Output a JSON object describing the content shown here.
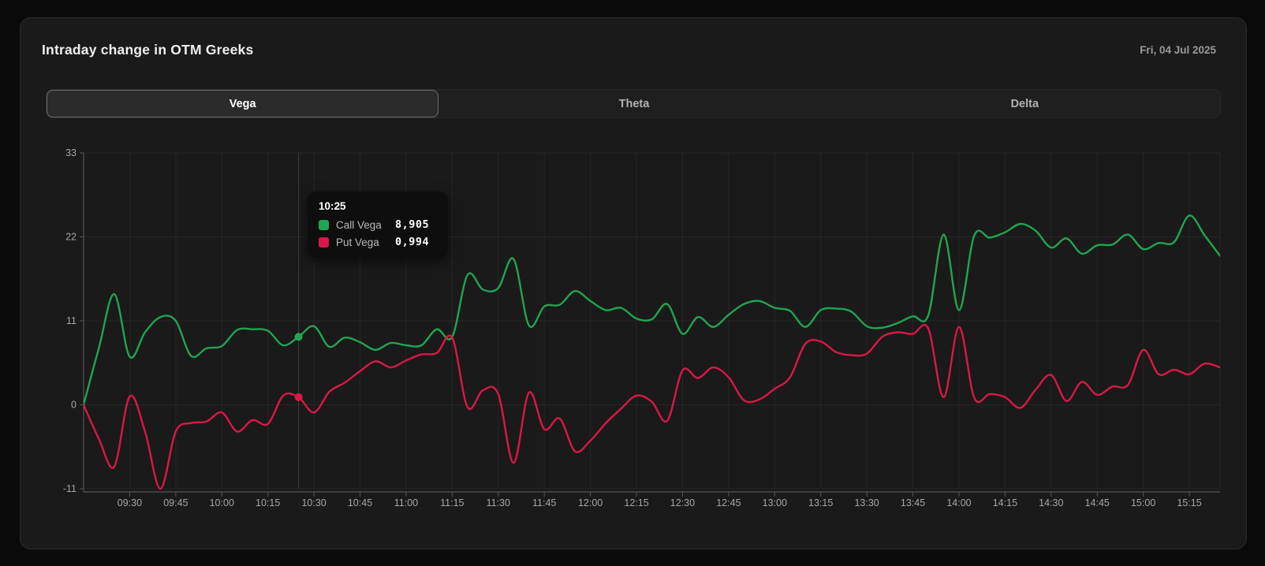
{
  "header": {
    "title": "Intraday change in OTM Greeks",
    "date": "Fri, 04 Jul 2025"
  },
  "tabs": [
    {
      "label": "Vega",
      "active": true
    },
    {
      "label": "Theta",
      "active": false
    },
    {
      "label": "Delta",
      "active": false
    }
  ],
  "colors": {
    "call_green": "#1FA551",
    "put_red": "#DB1747",
    "grid": "#272727",
    "axis": "#555555",
    "crosshair": "#3e3e3e",
    "tick_label": "#a6a6a6",
    "card_bg": "#1a1a1a",
    "page_bg": "#0a0a0a",
    "tooltip_bg": "#0e0e0e"
  },
  "chart_data": {
    "type": "line",
    "title": "Intraday change in OTM Greeks — Vega",
    "xlabel": "",
    "ylabel": "",
    "ylim": [
      -11,
      33
    ],
    "y_ticks": [
      33,
      22,
      11,
      0,
      -11
    ],
    "grid": true,
    "legend_position": "tooltip-only",
    "x": [
      "09:15",
      "09:20",
      "09:25",
      "09:30",
      "09:35",
      "09:40",
      "09:45",
      "09:50",
      "09:55",
      "10:00",
      "10:05",
      "10:10",
      "10:15",
      "10:20",
      "10:25",
      "10:30",
      "10:35",
      "10:40",
      "10:45",
      "10:50",
      "10:55",
      "11:00",
      "11:05",
      "11:10",
      "11:15",
      "11:20",
      "11:25",
      "11:30",
      "11:35",
      "11:40",
      "11:45",
      "11:50",
      "11:55",
      "12:00",
      "12:05",
      "12:10",
      "12:15",
      "12:20",
      "12:25",
      "12:30",
      "12:35",
      "12:40",
      "12:45",
      "12:50",
      "12:55",
      "13:00",
      "13:05",
      "13:10",
      "13:15",
      "13:20",
      "13:25",
      "13:30",
      "13:35",
      "13:40",
      "13:45",
      "13:50",
      "13:55",
      "14:00",
      "14:05",
      "14:10",
      "14:15",
      "14:20",
      "14:25",
      "14:30",
      "14:35",
      "14:40",
      "14:45",
      "14:50",
      "14:55",
      "15:00",
      "15:05",
      "15:10",
      "15:15",
      "15:20",
      "15:25"
    ],
    "x_tick_labels": [
      "09:30",
      "09:45",
      "10:00",
      "10:15",
      "10:30",
      "10:45",
      "11:00",
      "11:15",
      "11:30",
      "11:45",
      "12:00",
      "12:15",
      "12:30",
      "12:45",
      "13:00",
      "13:15",
      "13:30",
      "13:45",
      "14:00",
      "14:15",
      "14:30",
      "14:45",
      "15:00",
      "15:15"
    ],
    "series": [
      {
        "name": "Call Vega",
        "color": "#1FA551",
        "values": [
          0,
          7.5,
          14.5,
          6.3,
          9.5,
          11.5,
          11.0,
          6.4,
          7.4,
          7.7,
          9.8,
          9.9,
          9.7,
          7.8,
          8.9,
          10.3,
          7.6,
          8.8,
          8.2,
          7.2,
          8.1,
          7.8,
          7.8,
          9.9,
          8.9,
          17.0,
          15.1,
          15.3,
          19.1,
          10.4,
          12.9,
          13.1,
          14.9,
          13.6,
          12.4,
          12.7,
          11.3,
          11.2,
          13.2,
          9.3,
          11.5,
          10.2,
          11.8,
          13.2,
          13.6,
          12.7,
          12.3,
          10.2,
          12.4,
          12.6,
          12.2,
          10.3,
          10.1,
          10.7,
          11.6,
          11.7,
          22.3,
          12.4,
          22.2,
          21.9,
          22.6,
          23.7,
          22.8,
          20.6,
          21.8,
          19.8,
          20.9,
          21.0,
          22.3,
          20.4,
          21.2,
          21.3,
          24.8,
          22.2,
          19.5
        ]
      },
      {
        "name": "Put Vega",
        "color": "#DB1747",
        "values": [
          0,
          -4.5,
          -8.1,
          1.1,
          -3.5,
          -11.0,
          -3.5,
          -2.4,
          -2.2,
          -1.0,
          -3.5,
          -2.0,
          -2.5,
          1.2,
          1.0,
          -1.0,
          1.7,
          2.9,
          4.4,
          5.7,
          4.9,
          5.8,
          6.6,
          6.8,
          8.8,
          -0.3,
          1.9,
          1.4,
          -7.6,
          1.6,
          -3.2,
          -1.8,
          -6.1,
          -4.7,
          -2.4,
          -0.5,
          1.2,
          0.4,
          -2.1,
          4.5,
          3.5,
          4.9,
          3.6,
          0.6,
          0.7,
          2.1,
          3.6,
          8.0,
          8.3,
          6.9,
          6.5,
          6.7,
          8.9,
          9.5,
          9.3,
          10.0,
          1.0,
          10.2,
          0.9,
          1.4,
          1.0,
          -0.4,
          2.0,
          3.9,
          0.5,
          3.0,
          1.3,
          2.4,
          2.6,
          7.2,
          4.0,
          4.6,
          4.0,
          5.4,
          4.9
        ]
      }
    ],
    "tooltip": {
      "time": "10:25",
      "rows": [
        {
          "label": "Call Vega",
          "value": "8,905",
          "numeric": 8.905
        },
        {
          "label": "Put Vega",
          "value": "0,994",
          "numeric": 0.994
        }
      ]
    }
  }
}
